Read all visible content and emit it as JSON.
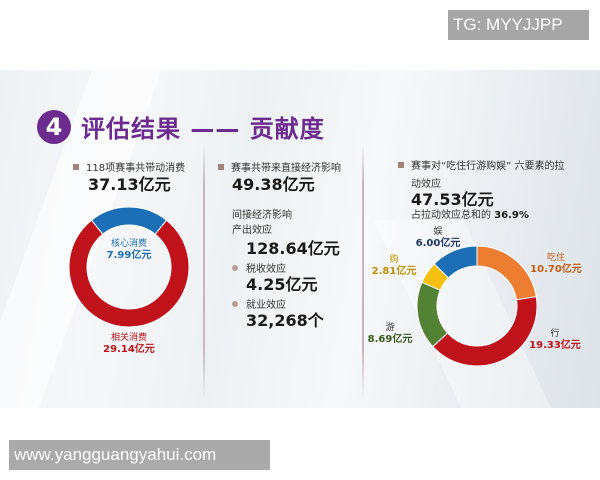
{
  "watermarks": {
    "top": "TG: MYYJJPP",
    "bottom": "www.yangguangyahui.com"
  },
  "title": {
    "number": "4",
    "text": "评估结果 —— 贡献度"
  },
  "colors": {
    "purple": "#6b2b8f",
    "red": "#c0121b",
    "blue": "#1c6fb7",
    "orange": "#ed7d31",
    "yellow": "#f5c012",
    "green": "#548235",
    "bullet": "#a4847a"
  },
  "col1": {
    "heading": "118项赛事共带动消费",
    "total": "37.13亿元",
    "core_label": "核心消费",
    "core_value": "7.99亿元",
    "related_label": "相关消费",
    "related_value": "29.14亿元"
  },
  "col2": {
    "heading": "赛事共带来直接经济影响",
    "direct_value": "49.38亿元",
    "indirect_heading": "间接经济影响",
    "output_label": "产出效应",
    "output_value": "128.64亿元",
    "tax_label": "税收效应",
    "tax_value": "4.25亿元",
    "employment_label": "就业效应",
    "employment_value": "32,268个"
  },
  "col3": {
    "heading_line1": "赛事对“吃住行游购娱” 六要素的拉",
    "heading_line2": "动效应",
    "total": "47.53亿元",
    "share_prefix": "占拉动效应总和的 ",
    "share_value": "36.9%",
    "labels": {
      "entertainment": {
        "name": "娱",
        "value": "6.00亿元"
      },
      "food_lodging": {
        "name": "吃住",
        "value": "10.70亿元"
      },
      "transport": {
        "name": "行",
        "value": "19.33亿元"
      },
      "tourism": {
        "name": "游",
        "value": "8.69亿元"
      },
      "shopping": {
        "name": "购",
        "value": "2.81亿元"
      }
    }
  },
  "chart_data": [
    {
      "type": "pie",
      "title": "118项赛事共带动消费 37.13亿元",
      "donut": true,
      "categories": [
        "核心消费",
        "相关消费"
      ],
      "values": [
        7.99,
        29.14
      ],
      "unit": "亿元",
      "colors": [
        "#1c6fb7",
        "#c0121b"
      ]
    },
    {
      "type": "pie",
      "title": "赛事对“吃住行游购娱”六要素的拉动效应 47.53亿元",
      "donut": true,
      "categories": [
        "吃住",
        "行",
        "游",
        "购",
        "娱"
      ],
      "values": [
        10.7,
        19.33,
        8.69,
        2.81,
        6.0
      ],
      "unit": "亿元",
      "colors": [
        "#ed7d31",
        "#c0121b",
        "#548235",
        "#f5c012",
        "#1c6fb7"
      ],
      "annotation": "占拉动效应总和的 36.9%"
    }
  ]
}
